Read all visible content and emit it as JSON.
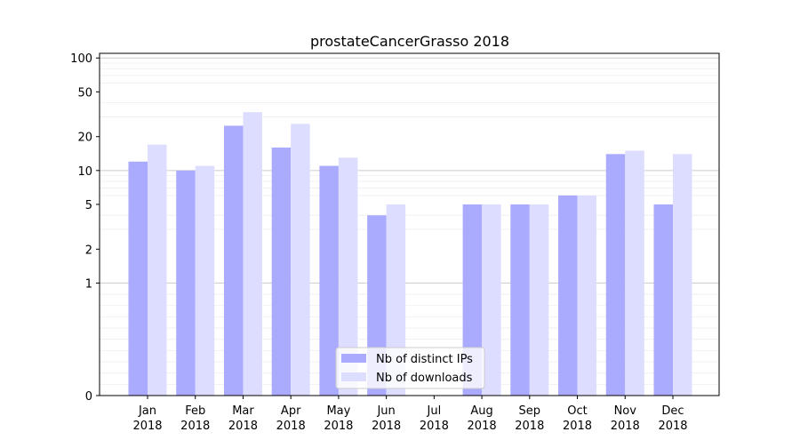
{
  "chart_data": {
    "type": "bar",
    "title": "prostateCancerGrasso 2018",
    "xlabel": "",
    "ylabel": "",
    "yscale": "symlog",
    "ylim": [
      0,
      110
    ],
    "yticks": [
      0,
      1,
      2,
      5,
      10,
      20,
      50,
      100
    ],
    "grid": "y",
    "legend_position": "bottom-center",
    "categories": [
      [
        "Jan",
        "2018"
      ],
      [
        "Feb",
        "2018"
      ],
      [
        "Mar",
        "2018"
      ],
      [
        "Apr",
        "2018"
      ],
      [
        "May",
        "2018"
      ],
      [
        "Jun",
        "2018"
      ],
      [
        "Jul",
        "2018"
      ],
      [
        "Aug",
        "2018"
      ],
      [
        "Sep",
        "2018"
      ],
      [
        "Oct",
        "2018"
      ],
      [
        "Nov",
        "2018"
      ],
      [
        "Dec",
        "2018"
      ]
    ],
    "series": [
      {
        "name": "Nb of distinct IPs",
        "color": "#aaaaff",
        "values": [
          12,
          10,
          25,
          16,
          11,
          4,
          0,
          5,
          5,
          6,
          14,
          5
        ]
      },
      {
        "name": "Nb of downloads",
        "color": "#ddddff",
        "values": [
          17,
          11,
          33,
          26,
          13,
          5,
          0,
          5,
          5,
          6,
          15,
          14
        ]
      }
    ]
  }
}
